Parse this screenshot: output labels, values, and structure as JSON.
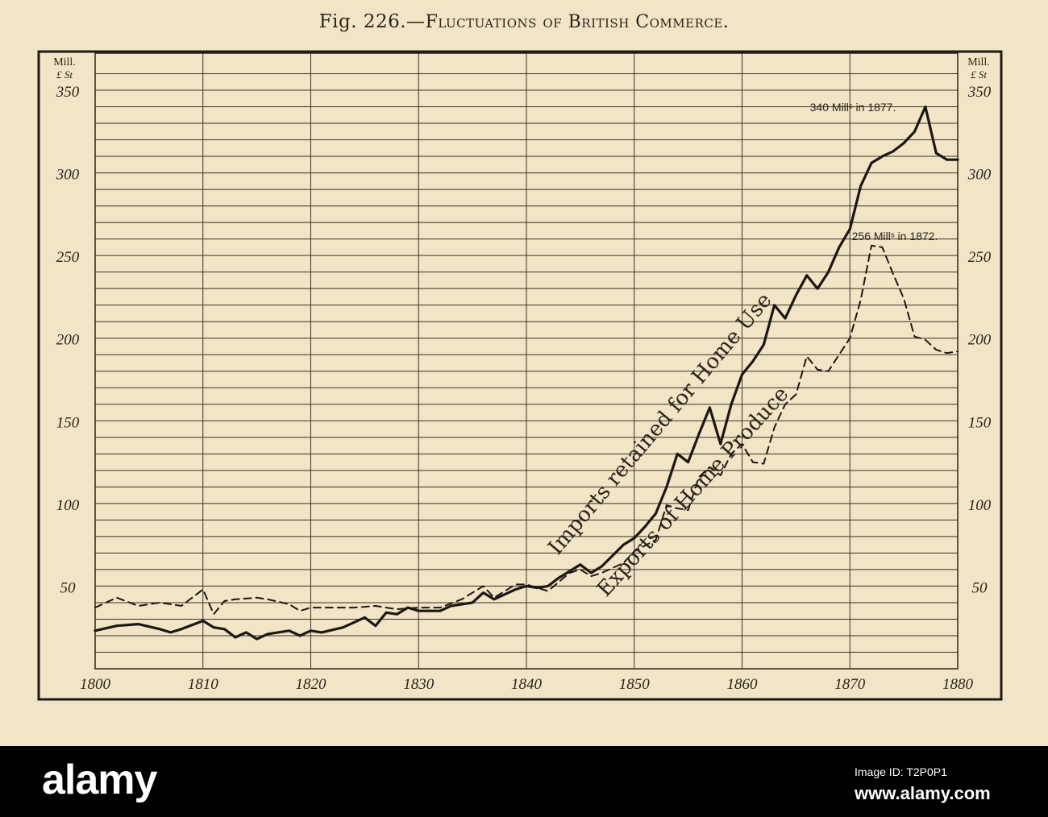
{
  "title": {
    "lead": "Fig. 226.—",
    "caps": "Fluctuations of British Commerce."
  },
  "axis_unit": {
    "line1": "Mill.",
    "line2": "£ St"
  },
  "footer": {
    "brand": "alamy",
    "image_id_label": "Image ID: T2P0P1",
    "photo_id": "www.alamy.com"
  },
  "chart_data": {
    "type": "line",
    "title": "Fluctuations of British Commerce.",
    "xlabel": "",
    "ylabel": "Mill. £ St",
    "xlim": [
      1800,
      1880
    ],
    "ylim": [
      0,
      360
    ],
    "x_ticks": [
      1800,
      1810,
      1820,
      1830,
      1840,
      1850,
      1860,
      1870,
      1880
    ],
    "y_ticks": [
      50,
      100,
      150,
      200,
      250,
      300,
      350
    ],
    "grid": true,
    "series": [
      {
        "name": "Imports retained for Home Use",
        "style": "solid",
        "points": [
          [
            1800,
            23
          ],
          [
            1802,
            26
          ],
          [
            1804,
            27
          ],
          [
            1806,
            24
          ],
          [
            1807,
            22
          ],
          [
            1808,
            24
          ],
          [
            1810,
            29
          ],
          [
            1811,
            25
          ],
          [
            1812,
            24
          ],
          [
            1813,
            19
          ],
          [
            1814,
            22
          ],
          [
            1815,
            18
          ],
          [
            1816,
            21
          ],
          [
            1818,
            23
          ],
          [
            1819,
            20
          ],
          [
            1820,
            23
          ],
          [
            1821,
            22
          ],
          [
            1823,
            25
          ],
          [
            1825,
            31
          ],
          [
            1826,
            26
          ],
          [
            1827,
            34
          ],
          [
            1828,
            33
          ],
          [
            1829,
            37
          ],
          [
            1830,
            35
          ],
          [
            1832,
            35
          ],
          [
            1833,
            38
          ],
          [
            1835,
            40
          ],
          [
            1836,
            46
          ],
          [
            1837,
            42
          ],
          [
            1839,
            48
          ],
          [
            1840,
            50
          ],
          [
            1841,
            49
          ],
          [
            1842,
            50
          ],
          [
            1843,
            55
          ],
          [
            1845,
            63
          ],
          [
            1846,
            58
          ],
          [
            1847,
            62
          ],
          [
            1849,
            75
          ],
          [
            1850,
            79
          ],
          [
            1851,
            86
          ],
          [
            1852,
            94
          ],
          [
            1853,
            110
          ],
          [
            1854,
            130
          ],
          [
            1855,
            125
          ],
          [
            1856,
            142
          ],
          [
            1857,
            158
          ],
          [
            1858,
            136
          ],
          [
            1859,
            160
          ],
          [
            1860,
            178
          ],
          [
            1861,
            186
          ],
          [
            1862,
            196
          ],
          [
            1863,
            220
          ],
          [
            1864,
            212
          ],
          [
            1865,
            226
          ],
          [
            1866,
            238
          ],
          [
            1867,
            230
          ],
          [
            1868,
            240
          ],
          [
            1869,
            255
          ],
          [
            1870,
            266
          ],
          [
            1871,
            292
          ],
          [
            1872,
            306
          ],
          [
            1873,
            310
          ],
          [
            1874,
            313
          ],
          [
            1875,
            318
          ],
          [
            1876,
            325
          ],
          [
            1877,
            340
          ],
          [
            1878,
            312
          ],
          [
            1879,
            308
          ],
          [
            1880,
            308
          ]
        ]
      },
      {
        "name": "Exports of Home Produce",
        "style": "dashed",
        "points": [
          [
            1800,
            37
          ],
          [
            1802,
            43
          ],
          [
            1804,
            38
          ],
          [
            1806,
            40
          ],
          [
            1808,
            38
          ],
          [
            1810,
            48
          ],
          [
            1811,
            33
          ],
          [
            1812,
            41
          ],
          [
            1813,
            42
          ],
          [
            1815,
            43
          ],
          [
            1816,
            42
          ],
          [
            1818,
            39
          ],
          [
            1819,
            35
          ],
          [
            1820,
            37
          ],
          [
            1822,
            37
          ],
          [
            1824,
            37
          ],
          [
            1826,
            38
          ],
          [
            1828,
            36
          ],
          [
            1830,
            37
          ],
          [
            1832,
            37
          ],
          [
            1834,
            42
          ],
          [
            1836,
            50
          ],
          [
            1837,
            43
          ],
          [
            1839,
            51
          ],
          [
            1840,
            51
          ],
          [
            1842,
            47
          ],
          [
            1844,
            58
          ],
          [
            1845,
            60
          ],
          [
            1846,
            56
          ],
          [
            1847,
            58
          ],
          [
            1849,
            64
          ],
          [
            1850,
            71
          ],
          [
            1852,
            78
          ],
          [
            1853,
            99
          ],
          [
            1854,
            97
          ],
          [
            1855,
            96
          ],
          [
            1856,
            116
          ],
          [
            1857,
            122
          ],
          [
            1858,
            117
          ],
          [
            1859,
            130
          ],
          [
            1860,
            136
          ],
          [
            1861,
            125
          ],
          [
            1862,
            124
          ],
          [
            1863,
            146
          ],
          [
            1864,
            160
          ],
          [
            1865,
            166
          ],
          [
            1866,
            189
          ],
          [
            1867,
            181
          ],
          [
            1868,
            180
          ],
          [
            1869,
            190
          ],
          [
            1870,
            200
          ],
          [
            1871,
            223
          ],
          [
            1872,
            256
          ],
          [
            1873,
            255
          ],
          [
            1874,
            239
          ],
          [
            1875,
            224
          ],
          [
            1876,
            201
          ],
          [
            1877,
            199
          ],
          [
            1878,
            193
          ],
          [
            1879,
            191
          ],
          [
            1880,
            192
          ]
        ]
      }
    ],
    "annotations": [
      {
        "text": "340 Millˢ in 1877."
      },
      {
        "text": "256 Millˢ in 1872."
      }
    ]
  }
}
